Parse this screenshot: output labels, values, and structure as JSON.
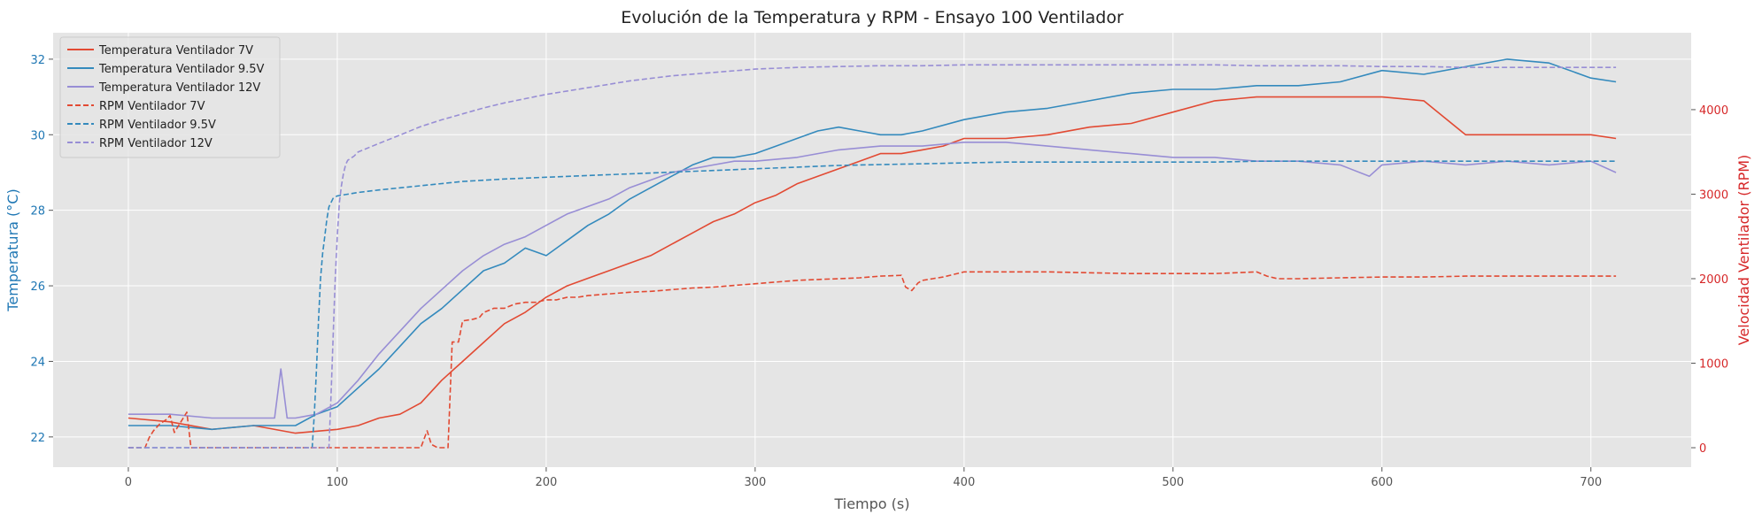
{
  "chart_data": {
    "type": "line",
    "title": "Evolución de la Temperatura y RPM - Ensayo 100 Ventilador",
    "xlabel": "Tiempo (s)",
    "ylabel_left": "Temperatura (°C)",
    "ylabel_right": "Velocidad Ventilador (RPM)",
    "xlim": [
      -36,
      748
    ],
    "ylim_left": [
      21.2,
      32.7
    ],
    "ylim_right": [
      -230,
      4910
    ],
    "xticks": [
      0,
      100,
      200,
      300,
      400,
      500,
      600,
      700
    ],
    "yticks_left": [
      22,
      24,
      26,
      28,
      30,
      32
    ],
    "yticks_right": [
      0,
      1000,
      2000,
      3000,
      4000
    ],
    "grid": true,
    "legend_position": "top-left",
    "colors": {
      "left_axis": "#1f77b4",
      "right_axis": "#d62728",
      "background": "#e5e5e5",
      "grid": "#ffffff"
    },
    "series": [
      {
        "name": "Temperatura Ventilador 7V",
        "axis": "left",
        "style": "solid",
        "color": "#e24a33",
        "x": [
          0,
          20,
          40,
          60,
          80,
          100,
          110,
          120,
          130,
          140,
          150,
          160,
          170,
          180,
          190,
          200,
          210,
          220,
          230,
          240,
          250,
          260,
          270,
          280,
          290,
          300,
          310,
          320,
          330,
          340,
          350,
          360,
          370,
          380,
          390,
          400,
          420,
          440,
          460,
          480,
          500,
          520,
          540,
          560,
          580,
          600,
          620,
          640,
          650,
          660,
          680,
          700,
          712
        ],
        "y": [
          22.5,
          22.4,
          22.2,
          22.3,
          22.1,
          22.2,
          22.3,
          22.5,
          22.6,
          22.9,
          23.5,
          24.0,
          24.5,
          25.0,
          25.3,
          25.7,
          26.0,
          26.2,
          26.4,
          26.6,
          26.8,
          27.1,
          27.4,
          27.7,
          27.9,
          28.2,
          28.4,
          28.7,
          28.9,
          29.1,
          29.3,
          29.5,
          29.5,
          29.6,
          29.7,
          29.9,
          29.9,
          30.0,
          30.2,
          30.3,
          30.6,
          30.9,
          31.0,
          31.0,
          31.0,
          31.0,
          30.9,
          30.0,
          30.0,
          30.0,
          30.0,
          30.0,
          29.9
        ]
      },
      {
        "name": "Temperatura Ventilador 9.5V",
        "axis": "left",
        "style": "solid",
        "color": "#348abd",
        "x": [
          0,
          20,
          40,
          60,
          80,
          90,
          100,
          110,
          120,
          130,
          140,
          150,
          160,
          170,
          180,
          190,
          200,
          210,
          220,
          230,
          240,
          250,
          260,
          270,
          280,
          290,
          300,
          310,
          320,
          330,
          340,
          350,
          360,
          370,
          380,
          400,
          420,
          440,
          460,
          480,
          500,
          520,
          540,
          560,
          580,
          600,
          620,
          640,
          660,
          680,
          700,
          712
        ],
        "y": [
          22.3,
          22.3,
          22.2,
          22.3,
          22.3,
          22.6,
          22.8,
          23.3,
          23.8,
          24.4,
          25.0,
          25.4,
          25.9,
          26.4,
          26.6,
          27.0,
          26.8,
          27.2,
          27.6,
          27.9,
          28.3,
          28.6,
          28.9,
          29.2,
          29.4,
          29.4,
          29.5,
          29.7,
          29.9,
          30.1,
          30.2,
          30.1,
          30.0,
          30.0,
          30.1,
          30.4,
          30.6,
          30.7,
          30.9,
          31.1,
          31.2,
          31.2,
          31.3,
          31.3,
          31.4,
          31.7,
          31.6,
          31.8,
          32.0,
          31.9,
          31.5,
          31.4
        ]
      },
      {
        "name": "Temperatura Ventilador 12V",
        "axis": "left",
        "style": "solid",
        "color": "#988ed5",
        "x": [
          0,
          20,
          40,
          60,
          70,
          73,
          76,
          80,
          90,
          100,
          110,
          120,
          130,
          140,
          150,
          160,
          170,
          180,
          190,
          200,
          210,
          220,
          230,
          240,
          250,
          260,
          270,
          280,
          290,
          300,
          320,
          340,
          360,
          380,
          400,
          420,
          440,
          460,
          480,
          500,
          520,
          540,
          560,
          580,
          594,
          600,
          620,
          640,
          660,
          680,
          700,
          712
        ],
        "y": [
          22.6,
          22.6,
          22.5,
          22.5,
          22.5,
          23.8,
          22.5,
          22.5,
          22.6,
          22.9,
          23.5,
          24.2,
          24.8,
          25.4,
          25.9,
          26.4,
          26.8,
          27.1,
          27.3,
          27.6,
          27.9,
          28.1,
          28.3,
          28.6,
          28.8,
          29.0,
          29.1,
          29.2,
          29.3,
          29.3,
          29.4,
          29.6,
          29.7,
          29.7,
          29.8,
          29.8,
          29.7,
          29.6,
          29.5,
          29.4,
          29.4,
          29.3,
          29.3,
          29.2,
          28.9,
          29.2,
          29.3,
          29.2,
          29.3,
          29.2,
          29.3,
          29.0
        ]
      },
      {
        "name": "RPM Ventilador 7V",
        "axis": "right",
        "style": "dashed",
        "color": "#e24a33",
        "x": [
          0,
          8,
          10,
          12,
          15,
          18,
          20,
          22,
          25,
          28,
          30,
          100,
          140,
          143,
          145,
          148,
          150,
          153,
          155,
          158,
          160,
          165,
          168,
          170,
          175,
          180,
          185,
          190,
          195,
          200,
          205,
          210,
          215,
          220,
          230,
          240,
          250,
          260,
          270,
          280,
          290,
          300,
          310,
          320,
          330,
          340,
          350,
          360,
          370,
          372,
          375,
          378,
          380,
          385,
          390,
          395,
          400,
          420,
          440,
          460,
          480,
          500,
          520,
          540,
          545,
          550,
          560,
          580,
          600,
          620,
          640,
          660,
          680,
          700,
          712
        ],
        "y": [
          0,
          0,
          120,
          200,
          280,
          330,
          380,
          180,
          300,
          420,
          0,
          0,
          0,
          200,
          40,
          0,
          0,
          0,
          1250,
          1250,
          1500,
          1520,
          1540,
          1600,
          1650,
          1650,
          1700,
          1720,
          1720,
          1750,
          1750,
          1780,
          1780,
          1800,
          1820,
          1840,
          1850,
          1870,
          1890,
          1900,
          1920,
          1940,
          1960,
          1980,
          1990,
          2000,
          2010,
          2030,
          2040,
          1900,
          1860,
          1950,
          1980,
          2000,
          2020,
          2050,
          2080,
          2080,
          2080,
          2070,
          2060,
          2060,
          2060,
          2080,
          2030,
          2000,
          2000,
          2010,
          2020,
          2020,
          2030,
          2030,
          2030,
          2030,
          2030
        ]
      },
      {
        "name": "RPM Ventilador 9.5V",
        "axis": "right",
        "style": "dashed",
        "color": "#348abd",
        "x": [
          0,
          88,
          89,
          90,
          91,
          92,
          93,
          94,
          95,
          96,
          98,
          100,
          105,
          110,
          120,
          140,
          160,
          180,
          200,
          220,
          240,
          260,
          280,
          300,
          320,
          340,
          360,
          380,
          400,
          420,
          440,
          460,
          480,
          500,
          520,
          540,
          560,
          580,
          600,
          620,
          640,
          660,
          680,
          700,
          712
        ],
        "y": [
          0,
          0,
          400,
          900,
          1500,
          2000,
          2300,
          2500,
          2700,
          2850,
          2950,
          2980,
          3000,
          3020,
          3050,
          3100,
          3150,
          3180,
          3200,
          3220,
          3240,
          3260,
          3280,
          3300,
          3320,
          3340,
          3350,
          3360,
          3370,
          3380,
          3380,
          3380,
          3380,
          3380,
          3380,
          3390,
          3390,
          3390,
          3390,
          3390,
          3390,
          3390,
          3390,
          3390,
          3390
        ]
      },
      {
        "name": "RPM Ventilador 12V",
        "axis": "right",
        "style": "dashed",
        "color": "#988ed5",
        "x": [
          0,
          96,
          97,
          98,
          99,
          100,
          101,
          102,
          103,
          104,
          105,
          108,
          110,
          120,
          130,
          140,
          150,
          160,
          170,
          180,
          190,
          200,
          210,
          220,
          230,
          240,
          250,
          260,
          270,
          280,
          290,
          300,
          320,
          340,
          360,
          380,
          400,
          420,
          440,
          460,
          480,
          500,
          520,
          540,
          560,
          580,
          600,
          620,
          640,
          660,
          680,
          700,
          712
        ],
        "y": [
          0,
          0,
          600,
          1300,
          2000,
          2500,
          2900,
          3100,
          3250,
          3350,
          3400,
          3450,
          3500,
          3600,
          3700,
          3800,
          3880,
          3950,
          4020,
          4080,
          4130,
          4180,
          4220,
          4260,
          4300,
          4340,
          4370,
          4400,
          4420,
          4440,
          4460,
          4480,
          4500,
          4510,
          4520,
          4520,
          4530,
          4530,
          4530,
          4530,
          4530,
          4530,
          4530,
          4520,
          4520,
          4520,
          4510,
          4510,
          4500,
          4500,
          4500,
          4500,
          4500
        ]
      }
    ]
  }
}
